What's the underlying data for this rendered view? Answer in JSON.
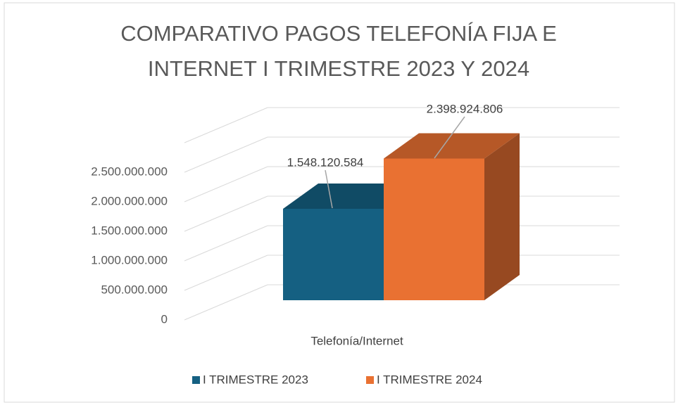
{
  "chart_data": {
    "type": "bar3d",
    "title": [
      "COMPARATIVO PAGOS TELEFONÍA FIJA E",
      "INTERNET I TRIMESTRE 2023 Y 2024"
    ],
    "categories": [
      "Telefonía/Internet"
    ],
    "series": [
      {
        "name": "I TRIMESTRE  2023",
        "color": "#156082",
        "values": [
          1548120584
        ],
        "value_labels": [
          "1.548.120.584"
        ]
      },
      {
        "name": "I TRIMESTRE 2024",
        "color": "#e97132",
        "values": [
          2398924806
        ],
        "value_labels": [
          "2.398.924.806"
        ]
      }
    ],
    "ylim": [
      0,
      3000000000
    ],
    "yticks": [
      0,
      {
        "value": 500000000,
        "label": "500.000.000"
      },
      {
        "value": 1000000000,
        "label": "1.000.000.000"
      },
      {
        "value": 1500000000,
        "label": "1.500.000.000"
      },
      {
        "value": 2000000000,
        "label": "2.000.000.000"
      },
      {
        "value": 2500000000,
        "label": "2.500.000.000"
      }
    ],
    "grid": true,
    "legend": "bottom"
  }
}
